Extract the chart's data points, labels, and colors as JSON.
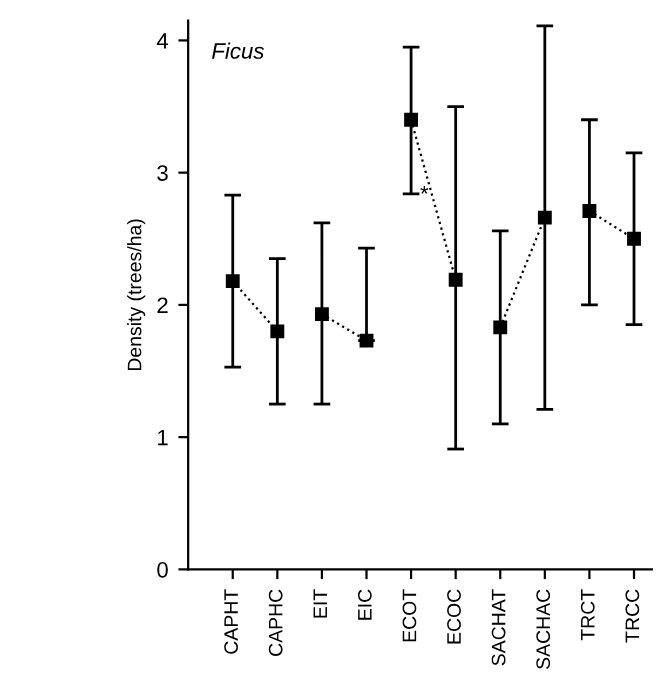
{
  "chart_data": {
    "type": "line",
    "ylabel": "Density (trees/ha)",
    "annotations": [
      "Ficus",
      "*"
    ],
    "categories": [
      "CAPHT",
      "CAPHC",
      "EIT",
      "EIC",
      "ECOT",
      "ECOC",
      "SACHAT",
      "SACHAC",
      "TRCT",
      "TRCC"
    ],
    "series": [
      {
        "color": "#000000",
        "values": [
          2.18,
          1.8,
          null,
          null,
          null,
          null,
          null,
          null,
          null,
          null
        ],
        "errors": [
          [
            1.53,
            2.83
          ],
          [
            1.25,
            2.35
          ],
          null,
          null,
          null,
          null,
          null,
          null,
          null,
          null
        ]
      },
      {
        "color": "#000000",
        "values": [
          null,
          null,
          1.93,
          1.73,
          null,
          null,
          null,
          null,
          null,
          null
        ],
        "errors": [
          null,
          null,
          [
            1.25,
            2.62
          ],
          [
            1.73,
            2.43
          ],
          null,
          null,
          null,
          null,
          null,
          null
        ]
      },
      {
        "color": "#000000",
        "values": [
          null,
          null,
          null,
          null,
          3.4,
          2.19,
          null,
          null,
          null,
          null
        ],
        "errors": [
          null,
          null,
          null,
          null,
          [
            2.84,
            3.95
          ],
          [
            0.91,
            3.5
          ],
          null,
          null,
          null,
          null
        ]
      },
      {
        "color": "#000000",
        "values": [
          null,
          null,
          null,
          null,
          null,
          null,
          1.83,
          2.66,
          null,
          null
        ],
        "errors": [
          null,
          null,
          null,
          null,
          null,
          null,
          [
            1.1,
            2.56
          ],
          [
            1.21,
            4.11
          ],
          null,
          null
        ]
      },
      {
        "color": "#000000",
        "values": [
          null,
          null,
          null,
          null,
          null,
          null,
          null,
          null,
          2.71,
          2.5
        ],
        "errors": [
          null,
          null,
          null,
          null,
          null,
          null,
          null,
          null,
          [
            2.0,
            3.4
          ],
          [
            1.85,
            3.15
          ]
        ]
      }
    ],
    "ylim": [
      0,
      4.15
    ],
    "yticks": [
      0,
      1,
      2,
      3,
      4
    ],
    "marker": "square",
    "line_style": "dotted",
    "grid": false,
    "legend": false
  }
}
